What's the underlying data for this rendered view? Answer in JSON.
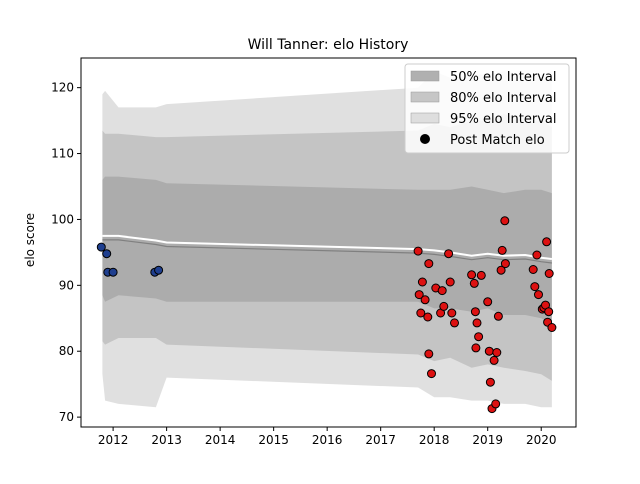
{
  "chart_data": {
    "type": "scatter",
    "title": "Will Tanner: elo History",
    "xlabel": "",
    "ylabel": "elo score",
    "xlim": [
      2011.4,
      2020.65
    ],
    "ylim": [
      68.5,
      124.5
    ],
    "xticks": [
      2012,
      2013,
      2014,
      2015,
      2016,
      2017,
      2018,
      2019,
      2020
    ],
    "yticks": [
      70,
      80,
      90,
      100,
      110,
      120
    ],
    "legend_position": "top-right",
    "legend": [
      {
        "label": "50% elo Interval",
        "kind": "band",
        "color": "#b0b0b0"
      },
      {
        "label": "80% elo Interval",
        "kind": "band",
        "color": "#c6c6c6"
      },
      {
        "label": "95% elo Interval",
        "kind": "band",
        "color": "#dedede"
      },
      {
        "label": "Post Match elo",
        "kind": "marker",
        "color": "#000000"
      }
    ],
    "bands": {
      "x": [
        2011.8,
        2011.85,
        2012.1,
        2012.8,
        2013.0,
        2017.7,
        2018.0,
        2018.3,
        2018.7,
        2019.0,
        2019.3,
        2019.7,
        2020.0,
        2020.2
      ],
      "p95_low": [
        76.5,
        72.5,
        72.0,
        71.5,
        76.0,
        74.5,
        73.0,
        73.0,
        72.5,
        72.5,
        72.0,
        72.0,
        71.5,
        71.5
      ],
      "p95_high": [
        119.0,
        119.5,
        117.0,
        117.0,
        117.5,
        120.0,
        122.5,
        121.5,
        122.0,
        122.0,
        122.5,
        122.0,
        122.0,
        122.5
      ],
      "p80_low": [
        81.5,
        81.0,
        82.0,
        82.0,
        81.0,
        79.5,
        78.5,
        79.0,
        77.5,
        78.0,
        77.5,
        77.0,
        76.5,
        75.5
      ],
      "p80_high": [
        113.5,
        113.0,
        113.0,
        112.5,
        112.5,
        113.5,
        114.5,
        114.0,
        115.0,
        115.0,
        116.0,
        115.0,
        115.0,
        114.0
      ],
      "p50_low": [
        88.5,
        87.5,
        88.5,
        88.0,
        87.5,
        87.5,
        86.5,
        86.5,
        86.0,
        86.5,
        85.5,
        85.5,
        85.0,
        84.0
      ],
      "p50_high": [
        106.0,
        106.5,
        106.5,
        106.0,
        105.5,
        104.5,
        104.5,
        104.5,
        105.0,
        104.5,
        104.0,
        104.5,
        104.5,
        104.0
      ],
      "mean": [
        97.5,
        97.5,
        97.5,
        96.8,
        96.5,
        95.5,
        95.3,
        95.0,
        94.5,
        94.8,
        94.5,
        94.6,
        94.2,
        94.0
      ]
    },
    "series": [
      {
        "color": "#1f3f8f",
        "points": [
          {
            "x": 2011.78,
            "y": 95.8
          },
          {
            "x": 2011.88,
            "y": 94.8
          },
          {
            "x": 2011.9,
            "y": 92.0
          },
          {
            "x": 2012.0,
            "y": 92.0
          },
          {
            "x": 2012.78,
            "y": 92.0
          },
          {
            "x": 2012.85,
            "y": 92.3
          }
        ]
      },
      {
        "color": "#dd1111",
        "points": [
          {
            "x": 2017.7,
            "y": 95.2
          },
          {
            "x": 2017.72,
            "y": 88.6
          },
          {
            "x": 2017.75,
            "y": 85.8
          },
          {
            "x": 2017.78,
            "y": 90.5
          },
          {
            "x": 2017.83,
            "y": 87.8
          },
          {
            "x": 2017.88,
            "y": 85.2
          },
          {
            "x": 2017.9,
            "y": 93.3
          },
          {
            "x": 2017.9,
            "y": 79.6
          },
          {
            "x": 2017.95,
            "y": 76.6
          },
          {
            "x": 2018.03,
            "y": 89.6
          },
          {
            "x": 2018.12,
            "y": 85.8
          },
          {
            "x": 2018.15,
            "y": 89.2
          },
          {
            "x": 2018.18,
            "y": 86.8
          },
          {
            "x": 2018.27,
            "y": 94.8
          },
          {
            "x": 2018.3,
            "y": 90.5
          },
          {
            "x": 2018.33,
            "y": 85.8
          },
          {
            "x": 2018.38,
            "y": 84.3
          },
          {
            "x": 2018.7,
            "y": 91.6
          },
          {
            "x": 2018.75,
            "y": 90.3
          },
          {
            "x": 2018.77,
            "y": 86.0
          },
          {
            "x": 2018.78,
            "y": 80.5
          },
          {
            "x": 2018.8,
            "y": 84.3
          },
          {
            "x": 2018.83,
            "y": 82.2
          },
          {
            "x": 2018.88,
            "y": 91.5
          },
          {
            "x": 2019.0,
            "y": 87.5
          },
          {
            "x": 2019.03,
            "y": 80.0
          },
          {
            "x": 2019.05,
            "y": 75.3
          },
          {
            "x": 2019.08,
            "y": 71.3
          },
          {
            "x": 2019.12,
            "y": 78.6
          },
          {
            "x": 2019.15,
            "y": 72.0
          },
          {
            "x": 2019.17,
            "y": 79.8
          },
          {
            "x": 2019.2,
            "y": 85.3
          },
          {
            "x": 2019.25,
            "y": 92.3
          },
          {
            "x": 2019.27,
            "y": 95.3
          },
          {
            "x": 2019.32,
            "y": 99.8
          },
          {
            "x": 2019.33,
            "y": 93.3
          },
          {
            "x": 2019.85,
            "y": 92.4
          },
          {
            "x": 2019.88,
            "y": 89.8
          },
          {
            "x": 2019.92,
            "y": 94.6
          },
          {
            "x": 2019.95,
            "y": 88.6
          },
          {
            "x": 2020.02,
            "y": 86.4
          },
          {
            "x": 2020.05,
            "y": 86.6
          },
          {
            "x": 2020.08,
            "y": 87.0
          },
          {
            "x": 2020.1,
            "y": 96.6
          },
          {
            "x": 2020.12,
            "y": 84.4
          },
          {
            "x": 2020.14,
            "y": 86.0
          },
          {
            "x": 2020.15,
            "y": 91.8
          },
          {
            "x": 2020.2,
            "y": 83.6
          }
        ]
      }
    ]
  }
}
